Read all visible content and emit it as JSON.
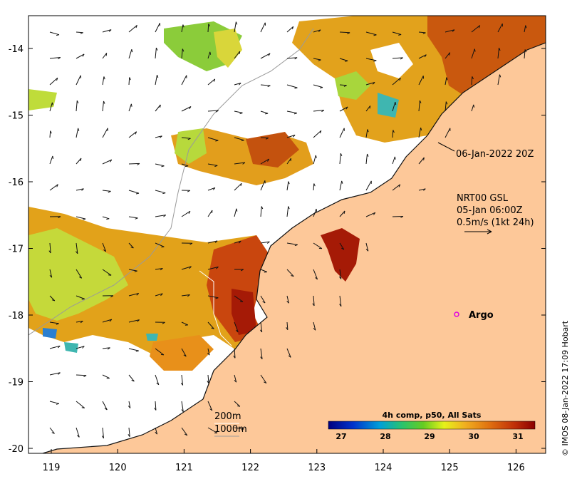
{
  "map": {
    "lon_ticks": [
      "119",
      "120",
      "121",
      "122",
      "123",
      "124",
      "125",
      "126"
    ],
    "lat_ticks": [
      "-14",
      "-15",
      "-16",
      "-17",
      "-18",
      "-19",
      "-20"
    ],
    "annotation_date": "06-Jan-2022 20Z",
    "current_label_1": "NRT00 GSL",
    "current_label_2": "05-Jan 06:00Z",
    "current_label_3": "0.5m/s (1kt 24h)",
    "argo_label": "Argo",
    "contour_200": "200m",
    "contour_1000": "1000m",
    "colorbar_title": "4h comp, p50, All Sats",
    "colorbar_ticks": [
      "27",
      "28",
      "29",
      "30",
      "31"
    ],
    "credit": "© IMOS 08-Jan-2022 17:09 Hobart"
  },
  "colors": {
    "land": "#fdc899",
    "cool": "#b5dc37",
    "warm": "#e59a1a",
    "hot": "#b02a08"
  }
}
